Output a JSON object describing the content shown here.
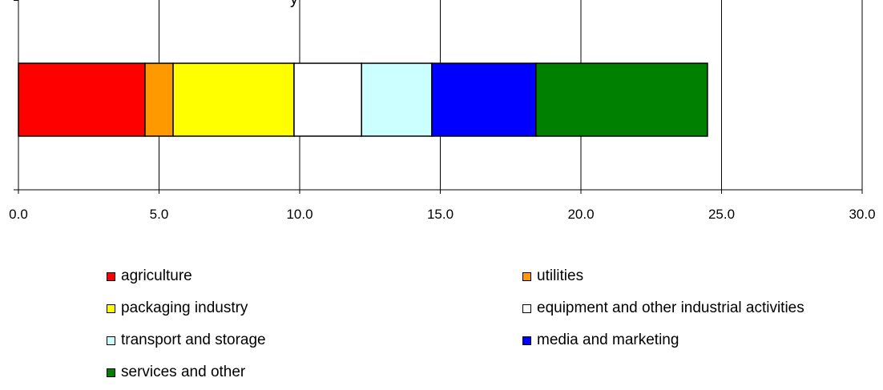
{
  "chart_data": {
    "type": "bar",
    "orientation": "horizontal",
    "stacked": true,
    "title": "",
    "xlabel": "",
    "ylabel": "",
    "xlim": [
      0,
      30
    ],
    "x_ticks": [
      "0.0",
      "5.0",
      "10.0",
      "15.0",
      "20.0",
      "25.0",
      "30.0"
    ],
    "grid": "vertical",
    "legend_position": "bottom",
    "series": [
      {
        "name": "agriculture",
        "value": 4.5,
        "color": "#ff0000"
      },
      {
        "name": "utilities",
        "value": 1.0,
        "color": "#ff9900"
      },
      {
        "name": "packaging industry",
        "value": 4.3,
        "color": "#ffff00"
      },
      {
        "name": "equipment and other industrial activities",
        "value": 2.4,
        "color": "#ffffff"
      },
      {
        "name": "transport and storage",
        "value": 2.5,
        "color": "#ccffff"
      },
      {
        "name": "media and marketing",
        "value": 3.7,
        "color": "#0000ff"
      },
      {
        "name": "services and other",
        "value": 6.1,
        "color": "#008000"
      }
    ]
  },
  "title_fragment": "y"
}
